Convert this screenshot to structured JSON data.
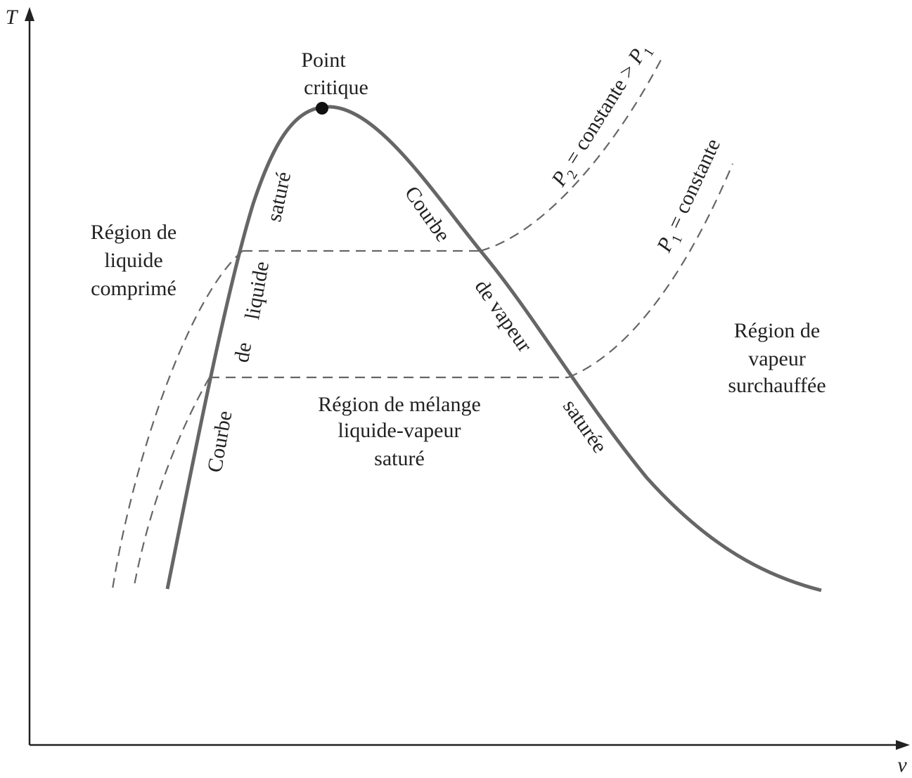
{
  "axes": {
    "y_label": "T",
    "x_label": "v"
  },
  "critical_point": {
    "lines": [
      "Point",
      "critique"
    ]
  },
  "regions": {
    "compressed_liquid": [
      "Région de",
      "liquide",
      "comprimé"
    ],
    "superheated_vapor": [
      "Région de",
      "vapeur",
      "surchauffée"
    ],
    "mixture": [
      "Région de mélange",
      "liquide-vapeur",
      "saturé"
    ]
  },
  "curves": {
    "saturated_liquid": [
      "Courbe",
      "de",
      "liquide",
      "saturé"
    ],
    "saturated_vapor": [
      "Courbe",
      "de vapeur",
      "saturée"
    ]
  },
  "isobars": {
    "p2": [
      "P",
      "2",
      " = constante > ",
      "P",
      "1"
    ],
    "p1": [
      "P",
      "1",
      " = constante"
    ]
  }
}
